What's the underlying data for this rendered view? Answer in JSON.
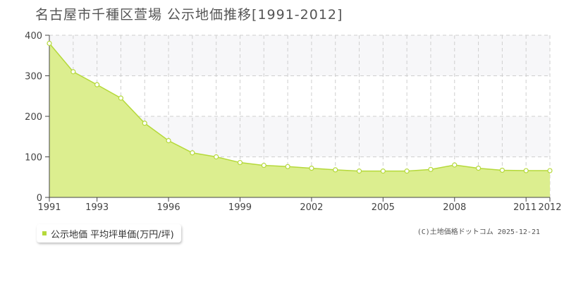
{
  "chart_data": {
    "type": "area",
    "title": "名古屋市千種区萱場 公示地価推移[1991-2012]",
    "x": [
      1991,
      1992,
      1993,
      1994,
      1995,
      1996,
      1997,
      1998,
      1999,
      2000,
      2001,
      2002,
      2003,
      2004,
      2005,
      2006,
      2007,
      2008,
      2009,
      2010,
      2011,
      2012
    ],
    "series": [
      {
        "name": "公示地価 平均坪単価(万円/坪)",
        "values": [
          380,
          310,
          278,
          245,
          183,
          140,
          110,
          100,
          86,
          79,
          76,
          72,
          68,
          65,
          65,
          65,
          69,
          80,
          72,
          67,
          66,
          66
        ]
      }
    ],
    "x_ticks": [
      "1991",
      "1993",
      "1996",
      "1999",
      "2002",
      "2005",
      "2008",
      "2011",
      "2012"
    ],
    "y_ticks": [
      "0",
      "100",
      "200",
      "300",
      "400"
    ],
    "ylim": [
      0,
      400
    ],
    "grid": true,
    "legend_position": "bottom-left",
    "colors": {
      "fill": "#dcee8f",
      "line": "#b5d93b",
      "band": "#f7f7f9",
      "grid": "#cfcfcf"
    }
  },
  "legend": {
    "label": "公示地価 平均坪単価(万円/坪)"
  },
  "credit": "(C)土地価格ドットコム 2025-12-21"
}
